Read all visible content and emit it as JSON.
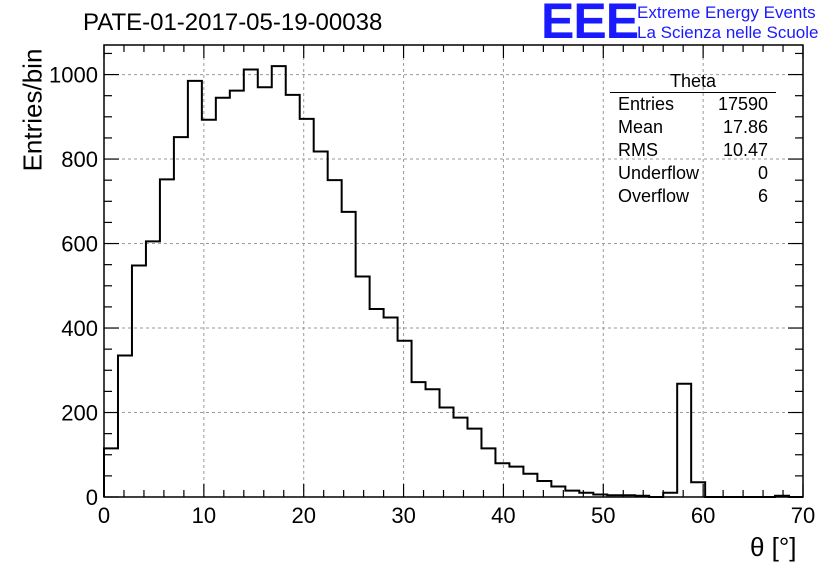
{
  "title": "PATE-01-2017-05-19-00038",
  "logo": {
    "mark": "EEE",
    "line1": "Extreme Energy Events",
    "line2": "La Scienza nelle Scuole",
    "color": "#1a1aff"
  },
  "stats": {
    "title": "Theta",
    "rows": [
      {
        "label": "Entries",
        "value": "17590"
      },
      {
        "label": "Mean",
        "value": "17.86"
      },
      {
        "label": "RMS",
        "value": "10.47"
      },
      {
        "label": "Underflow",
        "value": "0"
      },
      {
        "label": "Overflow",
        "value": "6"
      }
    ]
  },
  "chart_data": {
    "type": "bar",
    "histogram": true,
    "title": "PATE-01-2017-05-19-00038",
    "xlabel": "θ [°]",
    "ylabel": "Entries/bin",
    "xlim": [
      0,
      70
    ],
    "ylim": [
      0,
      1070
    ],
    "bin_width": 1.4,
    "grid": true,
    "xticks": [
      0,
      10,
      20,
      30,
      40,
      50,
      60,
      70
    ],
    "yticks": [
      0,
      200,
      400,
      600,
      800,
      1000
    ],
    "values": [
      115,
      335,
      548,
      605,
      752,
      852,
      985,
      893,
      945,
      962,
      1012,
      970,
      1020,
      952,
      895,
      818,
      750,
      675,
      522,
      445,
      425,
      370,
      272,
      255,
      212,
      188,
      162,
      115,
      80,
      72,
      55,
      38,
      25,
      15,
      10,
      6,
      4,
      4,
      3,
      0,
      10,
      268,
      35,
      0,
      0,
      0,
      0,
      0,
      3,
      0
    ]
  }
}
